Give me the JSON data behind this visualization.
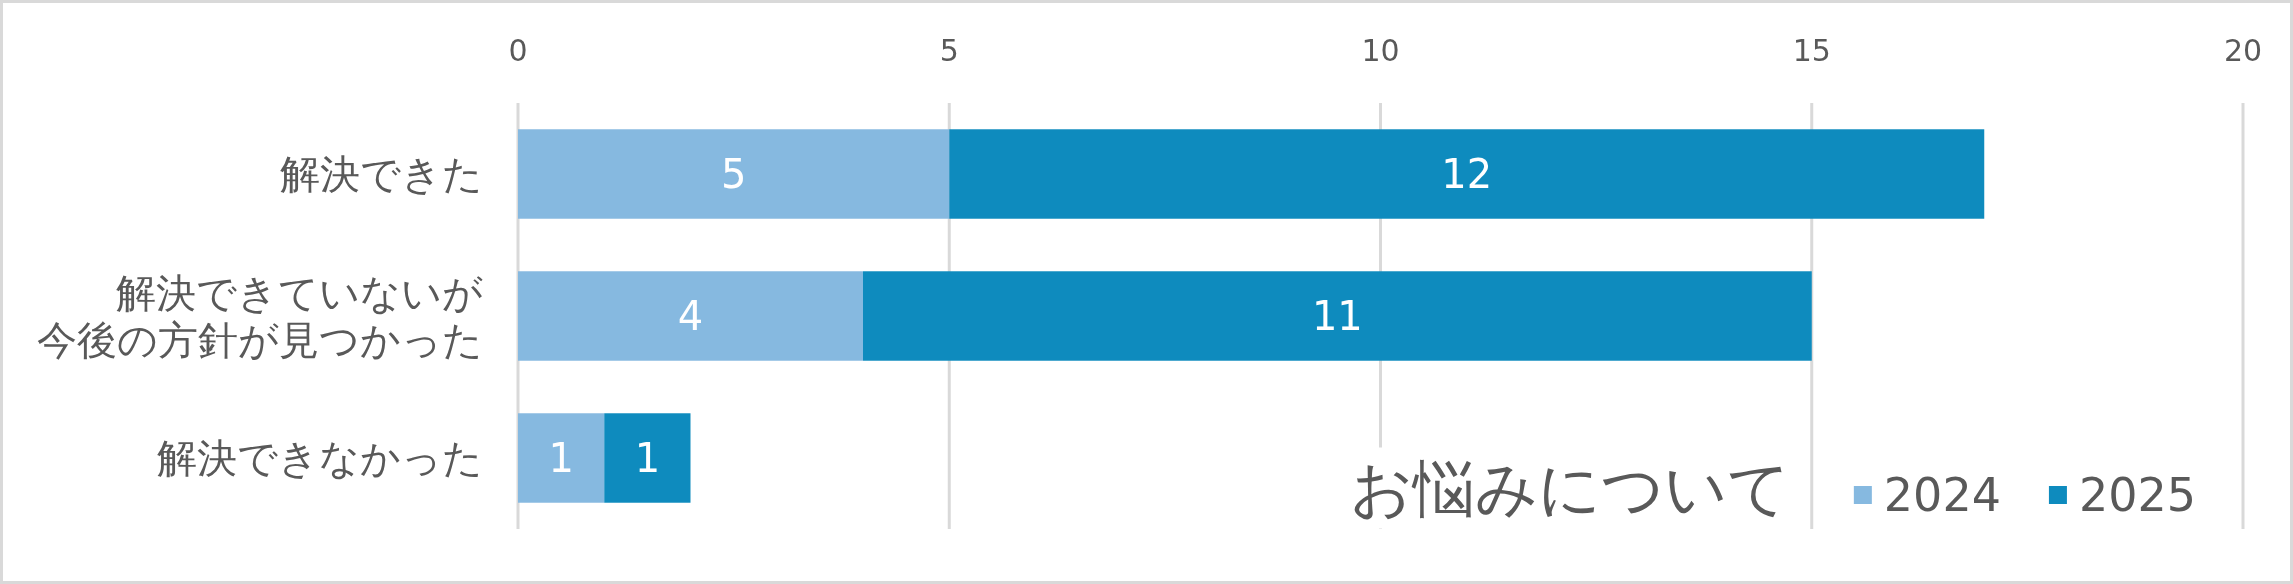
{
  "chart_data": {
    "type": "bar",
    "orientation": "horizontal",
    "stacked": true,
    "title": "お悩みについて",
    "categories": [
      "解決できた",
      "解決できていないが今後の方針が見つかった",
      "解決できなかった"
    ],
    "series": [
      {
        "name": "2024",
        "color": "#86b9e0",
        "values": [
          5,
          4,
          1
        ]
      },
      {
        "name": "2025",
        "color": "#0e8bbe",
        "values": [
          12,
          11,
          1
        ]
      }
    ],
    "xlim": [
      0,
      20
    ],
    "xticks": [
      0,
      5,
      10,
      15,
      20
    ],
    "grid": "x",
    "legend": "bottom right",
    "data_labels": true
  }
}
